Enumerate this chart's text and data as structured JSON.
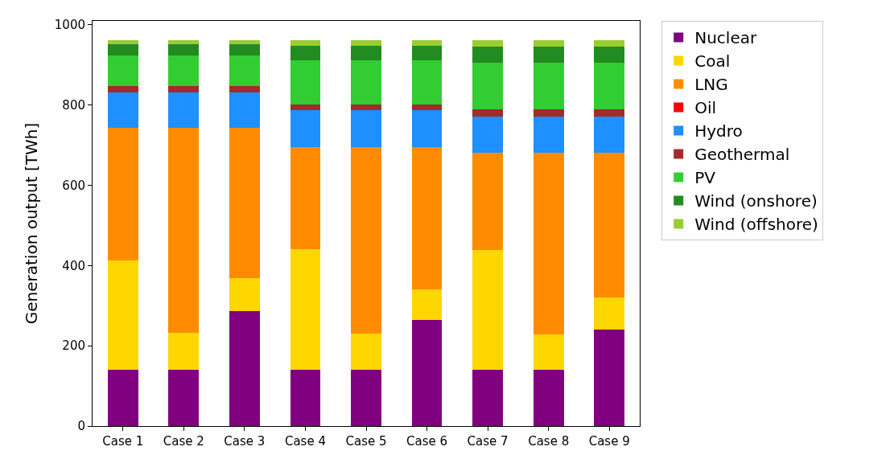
{
  "chart_data": {
    "type": "bar",
    "stacked": true,
    "ylabel": "Generation output [TWh]",
    "categories": [
      "Case 1",
      "Case 2",
      "Case 3",
      "Case 4",
      "Case 5",
      "Case 6",
      "Case 7",
      "Case 8",
      "Case 9"
    ],
    "series": [
      {
        "name": "Nuclear",
        "color": "#800080",
        "values": [
          140,
          140,
          287,
          140,
          140,
          265,
          140,
          140,
          241
        ]
      },
      {
        "name": "Coal",
        "color": "#ffd700",
        "values": [
          273,
          92,
          82,
          301,
          90,
          76,
          299,
          88,
          80
        ]
      },
      {
        "name": "LNG",
        "color": "#ff8c00",
        "values": [
          330,
          511,
          374,
          254,
          465,
          354,
          242,
          453,
          360
        ]
      },
      {
        "name": "Oil",
        "color": "#ff0000",
        "values": [
          0,
          0,
          0,
          0,
          0,
          0,
          0,
          0,
          0
        ]
      },
      {
        "name": "Hydro",
        "color": "#1e90ff",
        "values": [
          89,
          89,
          89,
          93,
          93,
          93,
          91,
          91,
          91
        ]
      },
      {
        "name": "Geothermal",
        "color": "#a52a2a",
        "values": [
          16,
          16,
          16,
          14,
          14,
          14,
          18,
          18,
          18
        ]
      },
      {
        "name": "PV",
        "color": "#32cd32",
        "values": [
          76,
          76,
          76,
          110,
          110,
          110,
          116,
          116,
          116
        ]
      },
      {
        "name": "Wind (onshore)",
        "color": "#228b22",
        "values": [
          28,
          28,
          28,
          36,
          36,
          36,
          40,
          40,
          40
        ]
      },
      {
        "name": "Wind (offshore)",
        "color": "#9acd32",
        "values": [
          10,
          10,
          10,
          14,
          14,
          14,
          16,
          16,
          16
        ]
      }
    ],
    "ylim": [
      0,
      1010
    ],
    "yticks": [
      0,
      200,
      400,
      600,
      800,
      1000
    ],
    "legend": "top right"
  }
}
